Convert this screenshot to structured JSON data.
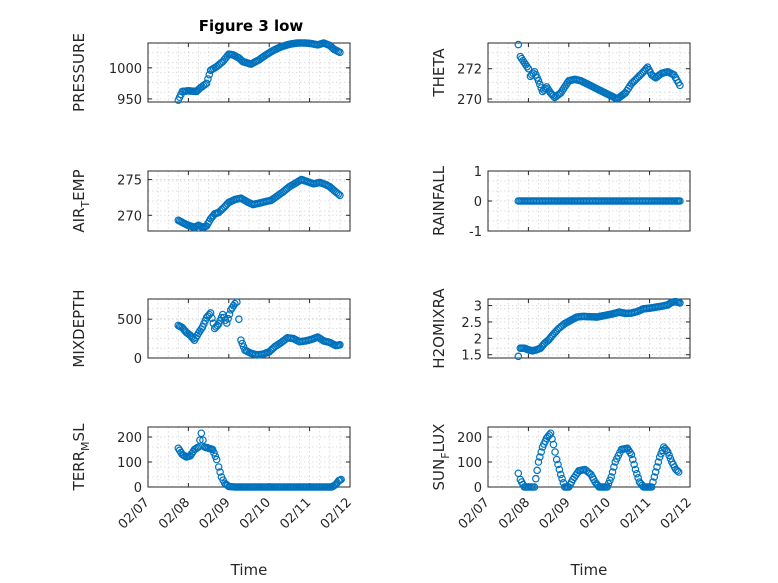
{
  "figure_title": "Figure 3 low",
  "colors": {
    "marker": "#0072bd",
    "axes": "#262626",
    "grid": "#d5d5d5",
    "background": "#ffffff"
  },
  "chart_data": [
    {
      "type": "scatter",
      "title": "Figure 3 low",
      "xlabel": "",
      "ylabel": "PRESSURE",
      "xlim": [
        "02/07",
        "02/12"
      ],
      "xticks": [
        "02/07",
        "02/08",
        "02/09",
        "02/10",
        "02/11",
        "02/12"
      ],
      "ylim": [
        945,
        1040
      ],
      "yticks": [
        950,
        1000
      ],
      "x_unit": "days after 02/07",
      "grid": true,
      "series": [
        {
          "x": [
            0.75,
            0.85,
            1.0,
            1.2,
            1.3,
            1.45,
            1.55,
            1.7,
            1.85,
            2.0,
            2.1,
            2.25,
            2.35,
            2.55,
            2.75,
            2.9,
            3.1,
            3.3,
            3.5,
            3.7,
            3.9,
            4.05,
            4.2,
            4.35,
            4.5,
            4.6,
            4.75
          ],
          "y": [
            948,
            962,
            963,
            962,
            968,
            975,
            996,
            1002,
            1010,
            1022,
            1021,
            1016,
            1010,
            1006,
            1013,
            1020,
            1028,
            1034,
            1038,
            1040,
            1040,
            1039,
            1037,
            1040,
            1036,
            1030,
            1025
          ]
        }
      ]
    },
    {
      "type": "scatter",
      "title": "",
      "xlabel": "",
      "ylabel": "THETA",
      "xlim": [
        "02/07",
        "02/12"
      ],
      "xticks": [
        "02/07",
        "02/08",
        "02/09",
        "02/10",
        "02/11",
        "02/12"
      ],
      "ylim": [
        269.8,
        273.7
      ],
      "yticks": [
        270,
        272
      ],
      "x_unit": "days after 02/07",
      "grid": true,
      "series": [
        {
          "x": [
            0.75,
            0.8,
            0.9,
            1.0,
            1.05,
            1.15,
            1.25,
            1.35,
            1.45,
            1.55,
            1.65,
            1.8,
            1.9,
            2.0,
            2.15,
            2.3,
            2.45,
            2.6,
            2.75,
            2.9,
            3.05,
            3.2,
            3.4,
            3.55,
            3.7,
            3.85,
            3.95,
            4.05,
            4.15,
            4.3,
            4.45,
            4.6,
            4.75
          ],
          "y": [
            273.6,
            272.8,
            272.4,
            272.0,
            271.5,
            271.8,
            271.2,
            270.5,
            270.8,
            270.4,
            270.1,
            270.4,
            270.8,
            271.2,
            271.3,
            271.2,
            271.0,
            270.8,
            270.6,
            270.4,
            270.2,
            270.0,
            270.4,
            271.0,
            271.4,
            271.8,
            272.1,
            271.6,
            271.4,
            271.7,
            271.8,
            271.6,
            270.9
          ]
        }
      ]
    },
    {
      "type": "scatter",
      "title": "",
      "xlabel": "",
      "ylabel": "AIR_TEMP",
      "xlim": [
        "02/07",
        "02/12"
      ],
      "xticks": [
        "02/07",
        "02/08",
        "02/09",
        "02/10",
        "02/11",
        "02/12"
      ],
      "ylim": [
        267.8,
        276.2
      ],
      "yticks": [
        270,
        275
      ],
      "x_unit": "days after 02/07",
      "grid": true,
      "series": [
        {
          "x": [
            0.75,
            0.85,
            0.95,
            1.05,
            1.15,
            1.25,
            1.35,
            1.45,
            1.55,
            1.65,
            1.75,
            1.9,
            2.0,
            2.15,
            2.3,
            2.45,
            2.6,
            2.75,
            2.9,
            3.05,
            3.2,
            3.35,
            3.5,
            3.65,
            3.8,
            3.95,
            4.1,
            4.25,
            4.4,
            4.5,
            4.6,
            4.75
          ],
          "y": [
            269.3,
            269.0,
            268.7,
            268.5,
            268.3,
            268.6,
            268.3,
            268.5,
            269.5,
            270.2,
            270.4,
            271.2,
            271.8,
            272.2,
            272.4,
            271.9,
            271.5,
            271.7,
            271.9,
            272.1,
            272.7,
            273.3,
            274.0,
            274.5,
            275.0,
            274.7,
            274.4,
            274.6,
            274.3,
            274.0,
            273.5,
            272.8
          ]
        }
      ]
    },
    {
      "type": "scatter",
      "title": "",
      "xlabel": "",
      "ylabel": "RAINFALL",
      "xlim": [
        "02/07",
        "02/12"
      ],
      "xticks": [
        "02/07",
        "02/08",
        "02/09",
        "02/10",
        "02/11",
        "02/12"
      ],
      "ylim": [
        -1,
        1
      ],
      "yticks": [
        -1,
        0,
        1
      ],
      "x_unit": "days after 02/07",
      "grid": true,
      "series": [
        {
          "x": [
            0.75,
            0.9,
            1.05,
            1.2,
            1.35,
            1.5,
            1.65,
            1.8,
            1.95,
            2.1,
            2.25,
            2.4,
            2.55,
            2.7,
            2.85,
            3.0,
            3.15,
            3.3,
            3.45,
            3.6,
            3.75,
            3.9,
            4.05,
            4.2,
            4.35,
            4.5,
            4.65,
            4.75
          ],
          "y": [
            0,
            0,
            0,
            0,
            0,
            0,
            0,
            0,
            0,
            0,
            0,
            0,
            0,
            0,
            0,
            0,
            0,
            0,
            0,
            0,
            0,
            0,
            0,
            0,
            0,
            0,
            0,
            0
          ]
        }
      ]
    },
    {
      "type": "scatter",
      "title": "",
      "xlabel": "",
      "ylabel": "MIXDEPTH",
      "xlim": [
        "02/07",
        "02/12"
      ],
      "xticks": [
        "02/07",
        "02/08",
        "02/09",
        "02/10",
        "02/11",
        "02/12"
      ],
      "ylim": [
        0,
        760
      ],
      "yticks": [
        0,
        500
      ],
      "x_unit": "days after 02/07",
      "grid": true,
      "series": [
        {
          "x": [
            0.75,
            0.85,
            0.95,
            1.05,
            1.15,
            1.25,
            1.35,
            1.45,
            1.55,
            1.65,
            1.75,
            1.85,
            1.95,
            2.05,
            2.15,
            2.2,
            2.25,
            2.3,
            2.4,
            2.55,
            2.7,
            2.85,
            3.0,
            3.15,
            3.3,
            3.45,
            3.6,
            3.75,
            3.9,
            4.05,
            4.2,
            4.35,
            4.5,
            4.65,
            4.75
          ],
          "y": [
            420,
            390,
            330,
            290,
            230,
            320,
            400,
            520,
            580,
            380,
            440,
            560,
            450,
            620,
            700,
            720,
            500,
            230,
            100,
            60,
            40,
            50,
            80,
            150,
            200,
            260,
            250,
            210,
            220,
            240,
            270,
            220,
            200,
            160,
            170
          ]
        }
      ]
    },
    {
      "type": "scatter",
      "title": "",
      "xlabel": "",
      "ylabel": "H2OMIXRA",
      "xlim": [
        "02/07",
        "02/12"
      ],
      "xticks": [
        "02/07",
        "02/08",
        "02/09",
        "02/10",
        "02/11",
        "02/12"
      ],
      "ylim": [
        1.4,
        3.2
      ],
      "yticks": [
        1.5,
        2,
        2.5,
        3
      ],
      "x_unit": "days after 02/07",
      "grid": true,
      "series": [
        {
          "x": [
            0.75,
            0.8,
            0.9,
            1.0,
            1.1,
            1.2,
            1.3,
            1.4,
            1.5,
            1.6,
            1.75,
            1.9,
            2.05,
            2.2,
            2.35,
            2.5,
            2.7,
            2.9,
            3.1,
            3.25,
            3.4,
            3.55,
            3.7,
            3.85,
            4.0,
            4.15,
            4.3,
            4.45,
            4.55,
            4.65,
            4.75
          ],
          "y": [
            1.45,
            1.7,
            1.7,
            1.65,
            1.62,
            1.65,
            1.7,
            1.85,
            1.95,
            2.1,
            2.3,
            2.45,
            2.55,
            2.65,
            2.67,
            2.66,
            2.65,
            2.7,
            2.75,
            2.8,
            2.76,
            2.77,
            2.82,
            2.9,
            2.92,
            2.95,
            2.98,
            3.02,
            3.1,
            3.12,
            3.08
          ]
        }
      ]
    },
    {
      "type": "scatter",
      "title": "",
      "xlabel": "Time",
      "ylabel": "TERR_MSL",
      "xlim": [
        "02/07",
        "02/12"
      ],
      "xticks": [
        "02/07",
        "02/08",
        "02/09",
        "02/10",
        "02/11",
        "02/12"
      ],
      "ylim": [
        0,
        240
      ],
      "yticks": [
        0,
        100,
        200
      ],
      "x_unit": "days after 02/07",
      "grid": true,
      "series": [
        {
          "x": [
            0.75,
            0.85,
            0.95,
            1.05,
            1.15,
            1.25,
            1.32,
            1.4,
            1.5,
            1.6,
            1.7,
            1.75,
            1.82,
            1.9,
            2.0,
            2.15,
            2.35,
            2.6,
            2.85,
            3.1,
            3.35,
            3.6,
            3.85,
            4.1,
            4.35,
            4.55,
            4.65,
            4.72,
            4.78
          ],
          "y": [
            155,
            130,
            120,
            125,
            150,
            160,
            215,
            160,
            155,
            150,
            110,
            80,
            40,
            15,
            2,
            0,
            0,
            0,
            0,
            0,
            0,
            0,
            0,
            0,
            0,
            0,
            10,
            25,
            30
          ]
        }
      ]
    },
    {
      "type": "scatter",
      "title": "",
      "xlabel": "Time",
      "ylabel": "SUN_FLUX",
      "xlim": [
        "02/07",
        "02/12"
      ],
      "xticks": [
        "02/07",
        "02/08",
        "02/09",
        "02/10",
        "02/11",
        "02/12"
      ],
      "ylim": [
        0,
        240
      ],
      "yticks": [
        0,
        100,
        200
      ],
      "x_unit": "days after 02/07",
      "grid": true,
      "series": [
        {
          "x": [
            0.75,
            0.8,
            0.9,
            1.0,
            1.15,
            1.25,
            1.35,
            1.45,
            1.55,
            1.62,
            1.7,
            1.8,
            1.9,
            2.0,
            2.1,
            2.25,
            2.4,
            2.55,
            2.65,
            2.75,
            2.85,
            2.95,
            3.05,
            3.15,
            3.3,
            3.45,
            3.55,
            3.65,
            3.75,
            3.85,
            3.95,
            4.05,
            4.15,
            4.25,
            4.35,
            4.45,
            4.55,
            4.65,
            4.72
          ],
          "y": [
            55,
            30,
            0,
            0,
            0,
            100,
            160,
            195,
            215,
            170,
            110,
            50,
            0,
            0,
            30,
            65,
            70,
            50,
            20,
            0,
            0,
            0,
            40,
            100,
            150,
            155,
            130,
            70,
            20,
            0,
            0,
            0,
            60,
            120,
            160,
            140,
            100,
            70,
            60
          ]
        }
      ]
    }
  ]
}
